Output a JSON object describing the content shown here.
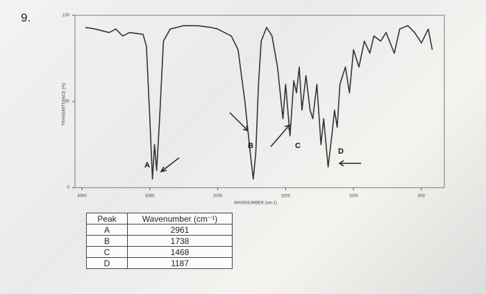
{
  "question": "9.",
  "chart_data": {
    "type": "line",
    "ylabel": "TRANSMITTANCE (%)",
    "xlabel": "WAVENUMBER (cm-1)",
    "x": [
      3950,
      3800,
      3600,
      3500,
      3400,
      3300,
      3100,
      3050,
      3000,
      2961,
      2930,
      2900,
      2870,
      2850,
      2800,
      2700,
      2500,
      2300,
      2100,
      2000,
      1900,
      1850,
      1800,
      1760,
      1738,
      1720,
      1700,
      1680,
      1640,
      1600,
      1560,
      1520,
      1500,
      1468,
      1440,
      1420,
      1400,
      1380,
      1350,
      1320,
      1300,
      1270,
      1240,
      1220,
      1187,
      1160,
      1140,
      1120,
      1100,
      1060,
      1030,
      1000,
      960,
      920,
      880,
      850,
      800,
      760,
      700,
      660,
      600,
      550,
      500,
      450,
      420
    ],
    "values": [
      93,
      92,
      90,
      92,
      88,
      90,
      89,
      82,
      40,
      5,
      25,
      10,
      30,
      45,
      85,
      92,
      94,
      94,
      93,
      92,
      88,
      80,
      50,
      20,
      5,
      20,
      60,
      85,
      93,
      88,
      70,
      40,
      60,
      30,
      62,
      55,
      70,
      45,
      65,
      45,
      40,
      60,
      25,
      40,
      12,
      30,
      45,
      35,
      60,
      70,
      55,
      80,
      70,
      85,
      78,
      88,
      85,
      90,
      78,
      92,
      94,
      90,
      84,
      92,
      80
    ],
    "color": "#333333",
    "xlim": [
      4000,
      400
    ],
    "ylim": [
      0,
      100
    ],
    "xticks": [
      4000,
      3000,
      2000,
      1500,
      1000,
      500
    ],
    "yticks": [
      0,
      50,
      100
    ],
    "annotations": [
      "A",
      "B",
      "C",
      "D"
    ]
  },
  "table": {
    "header": [
      "Peak",
      "Wavenumber (cm⁻¹)"
    ],
    "rows": [
      [
        "A",
        2961
      ],
      [
        "B",
        1738
      ],
      [
        "C",
        1468
      ],
      [
        "D",
        1187
      ]
    ]
  }
}
